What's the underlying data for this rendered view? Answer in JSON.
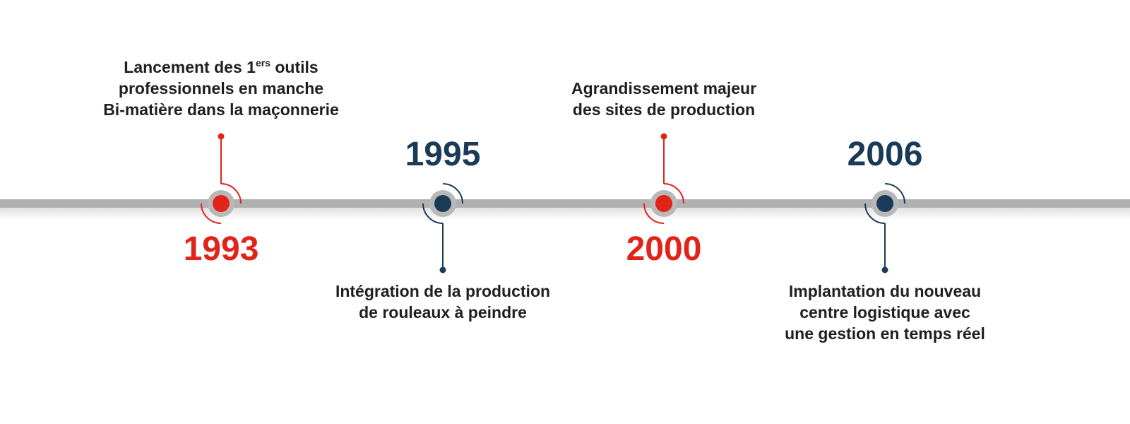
{
  "events": [
    {
      "year": "1993",
      "color": "#e2231a",
      "side": "top",
      "lines": [
        {
          "before": "Lancement des 1",
          "sup": "ers",
          "after": " outils"
        },
        "professionnels en manche",
        "Bi-matière dans la maçonnerie"
      ]
    },
    {
      "year": "1995",
      "color": "#1b3a57",
      "side": "bottom",
      "lines": [
        "Intégration de la production",
        "de rouleaux à peindre"
      ]
    },
    {
      "year": "2000",
      "color": "#e2231a",
      "side": "top",
      "lines": [
        "Agrandissement majeur",
        "des sites de production"
      ]
    },
    {
      "year": "2006",
      "color": "#1b3a57",
      "side": "bottom",
      "lines": [
        "Implantation du nouveau",
        "centre logistique avec",
        "une gestion en temps réel"
      ]
    }
  ]
}
